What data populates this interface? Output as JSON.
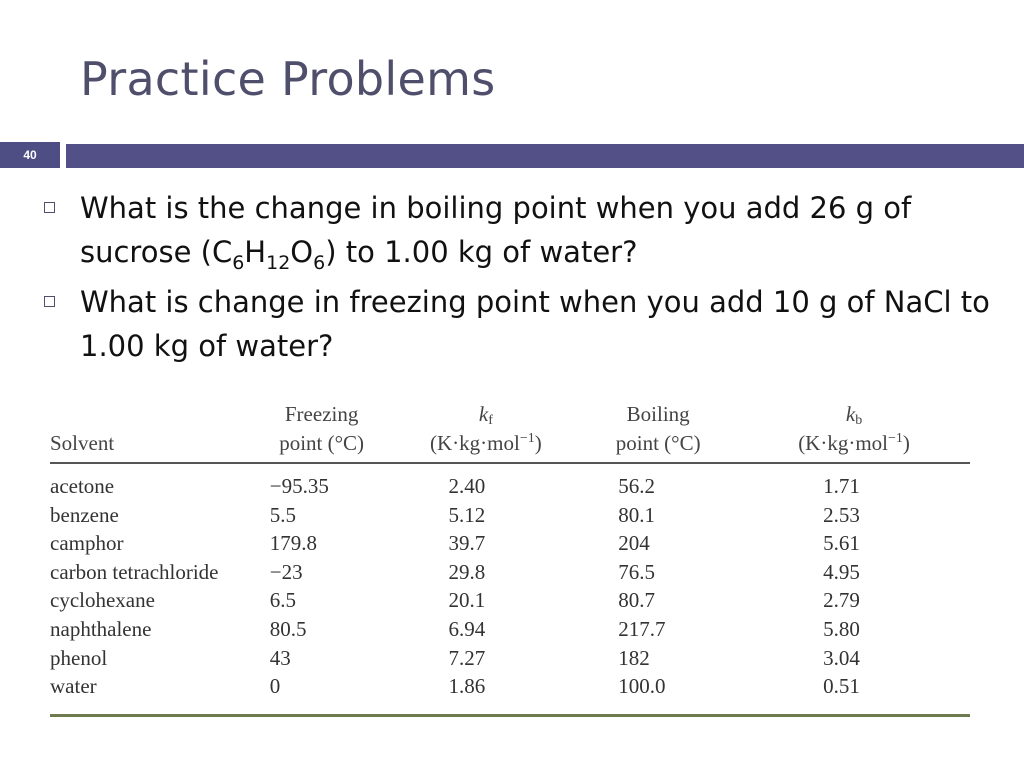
{
  "slide": {
    "title": "Practice Problems",
    "slide_number": "40",
    "bar_color": "#525086",
    "title_color": "#4f4e6b"
  },
  "bullets": [
    {
      "text_before": "What is the change in boiling point when you add 26 g of sucrose (C",
      "sub1": "6",
      "mid1": "H",
      "sub2": "12",
      "mid2": "O",
      "sub3": "6",
      "text_after": ") to 1.00 kg of water?"
    },
    {
      "text": "What is change in freezing point when you add 10 g of NaCl to 1.00 kg of water?"
    }
  ],
  "table": {
    "headers": {
      "solvent": "Solvent",
      "fp_line1": "Freezing",
      "fp_line2": "point (°C)",
      "kf_symbol": "k",
      "kf_sub": "f",
      "kf_units": "(K·kg·mol",
      "kf_exp": "−1",
      "kf_close": ")",
      "bp_line1": "Boiling",
      "bp_line2": "point (°C)",
      "kb_symbol": "k",
      "kb_sub": "b",
      "kb_units": "(K·kg·mol",
      "kb_exp": "−1",
      "kb_close": ")"
    },
    "rows": [
      {
        "solvent": "acetone",
        "fp": "−95.35",
        "kf": "2.40",
        "bp": "56.2",
        "kb": "1.71"
      },
      {
        "solvent": "benzene",
        "fp": "5.5",
        "kf": "5.12",
        "bp": "80.1",
        "kb": "2.53"
      },
      {
        "solvent": "camphor",
        "fp": "179.8",
        "kf": "39.7",
        "bp": "204",
        "kb": "5.61"
      },
      {
        "solvent": "carbon tetrachloride",
        "fp": "−23",
        "kf": "29.8",
        "bp": "76.5",
        "kb": "4.95"
      },
      {
        "solvent": "cyclohexane",
        "fp": "6.5",
        "kf": "20.1",
        "bp": "80.7",
        "kb": "2.79"
      },
      {
        "solvent": "naphthalene",
        "fp": "80.5",
        "kf": "6.94",
        "bp": "217.7",
        "kb": "5.80"
      },
      {
        "solvent": "phenol",
        "fp": "43",
        "kf": "7.27",
        "bp": "182",
        "kb": "3.04"
      },
      {
        "solvent": "water",
        "fp": "0",
        "kf": "1.86",
        "bp": "100.0",
        "kb": "0.51"
      }
    ]
  }
}
